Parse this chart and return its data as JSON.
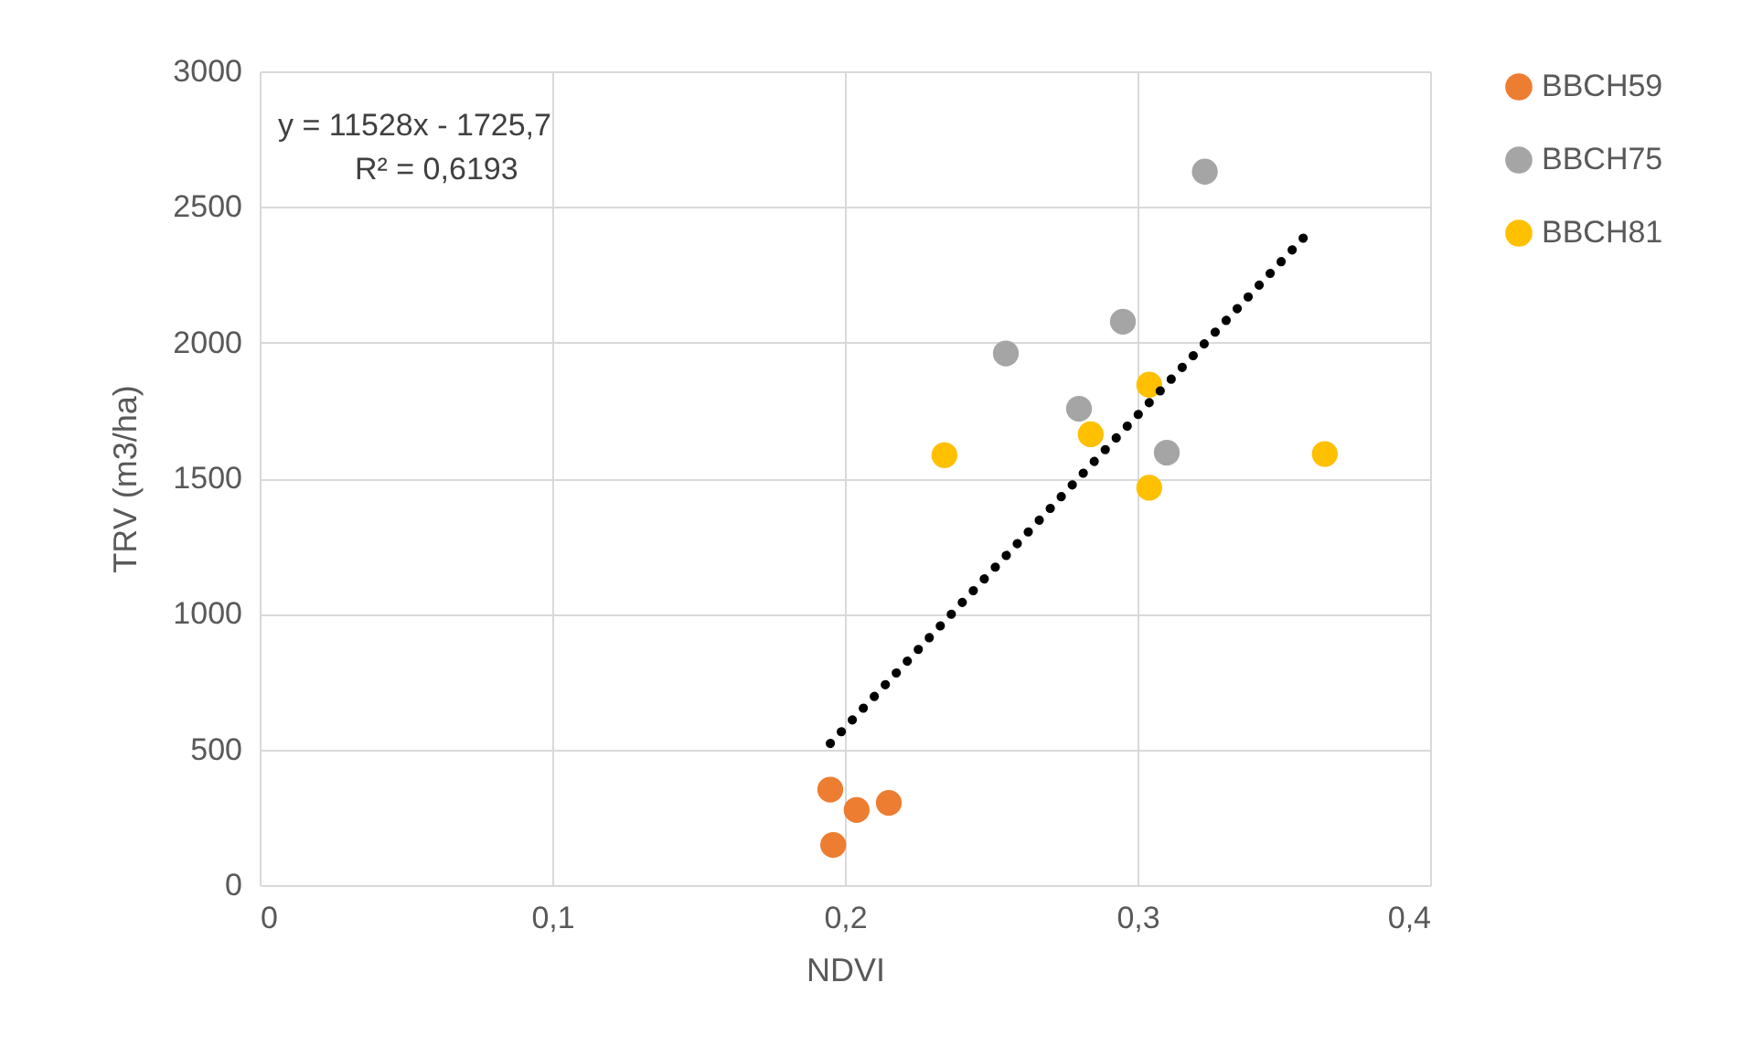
{
  "chart_data": {
    "type": "scatter",
    "xlabel": "NDVI",
    "ylabel": "TRV (m3/ha)",
    "annotations": [
      "y = 11528x - 1725,7",
      "R² = 0,6193"
    ],
    "series": [
      {
        "name": "BBCH59",
        "color": "#ed7d31",
        "x": [
          0.195,
          0.204,
          0.215,
          0.196
        ],
        "values": [
          352,
          277,
          303,
          148
        ]
      },
      {
        "name": "BBCH75",
        "color": "#a5a5a5",
        "x": [
          0.323,
          0.295,
          0.255,
          0.28,
          0.31
        ],
        "values": [
          2630,
          2077,
          1960,
          1756,
          1594
        ]
      },
      {
        "name": "BBCH81",
        "color": "#ffc000",
        "x": [
          0.234,
          0.284,
          0.304,
          0.304,
          0.364
        ],
        "values": [
          1585,
          1662,
          1845,
          1465,
          1589
        ]
      },
      {
        "type": "line",
        "line_style": "dotted",
        "marker": "none",
        "color": "#000000",
        "x": [
          0.195,
          0.358
        ],
        "values": [
          522,
          2401
        ]
      }
    ],
    "xlim": [
      0,
      0.4
    ],
    "xticks": [
      0,
      {
        "value": 0.1,
        "label": "0,1"
      },
      {
        "value": 0.2,
        "label": "0,2"
      },
      {
        "value": 0.3,
        "label": "0,3"
      },
      {
        "value": 0.4,
        "label": "0,4"
      }
    ],
    "ylim": [
      0,
      3000
    ],
    "yticks": [
      0,
      500,
      1000,
      1500,
      2000,
      2500,
      3000
    ],
    "grid": true,
    "legend": "right",
    "marker": "circle"
  }
}
